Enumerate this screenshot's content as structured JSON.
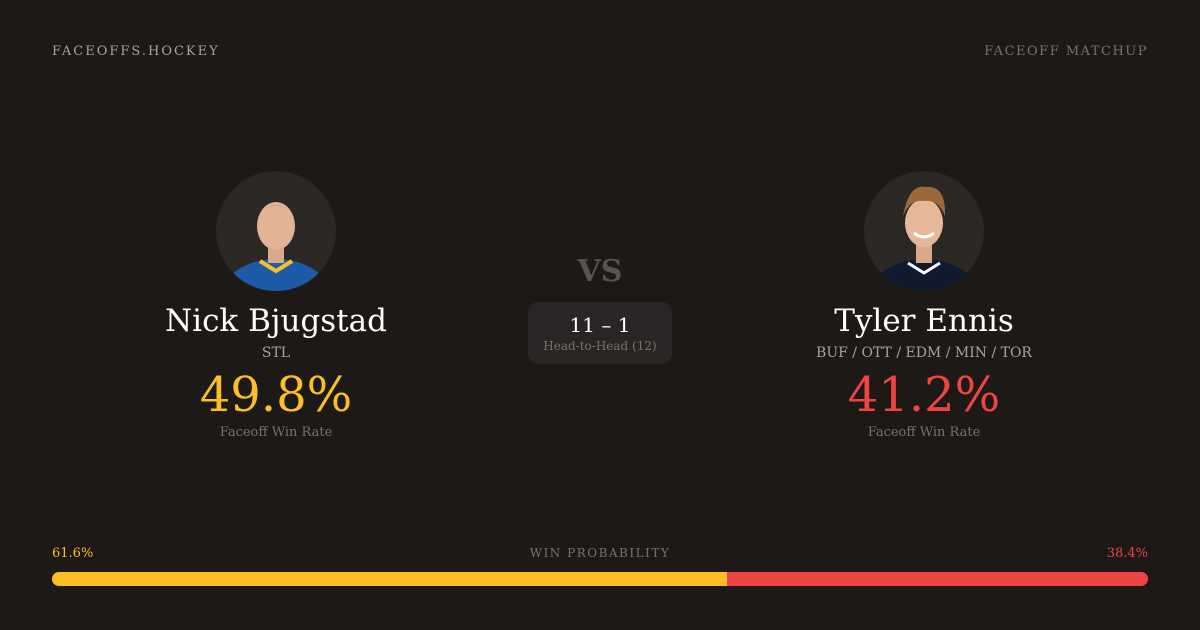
{
  "header": {
    "brand": "FACEOFFS.HOCKEY",
    "tag": "FACEOFF MATCHUP"
  },
  "player1": {
    "name": "Nick Bjugstad",
    "team": "STL",
    "win_rate": "49.8%",
    "win_rate_label": "Faceoff Win Rate",
    "color": "#fbbf24",
    "jersey": "#1e5aa8"
  },
  "player2": {
    "name": "Tyler Ennis",
    "team": "BUF / OTT / EDM / MIN / TOR",
    "win_rate": "41.2%",
    "win_rate_label": "Faceoff Win Rate",
    "color": "#ef4444",
    "jersey": "#0f1a2e"
  },
  "vs": "VS",
  "head_to_head": {
    "score": "11 – 1",
    "label": "Head-to-Head (12)"
  },
  "win_probability": {
    "label": "WIN PROBABILITY",
    "left": "61.6%",
    "right": "38.4%",
    "left_value": 61.6
  }
}
